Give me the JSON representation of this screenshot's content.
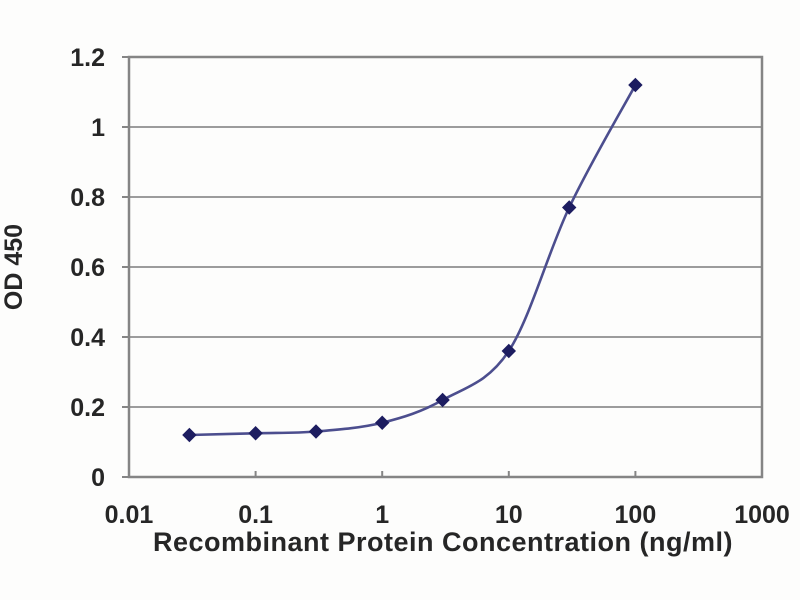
{
  "page": {
    "background": "#fdfdfc"
  },
  "chart_data": {
    "type": "line",
    "title": "",
    "xlabel": "Recombinant Protein Concentration (ng/ml)",
    "ylabel": "OD 450",
    "x_scale": "log",
    "xlim": [
      0.01,
      1000
    ],
    "ylim": [
      0,
      1.2
    ],
    "x_ticks": [
      0.01,
      0.1,
      1,
      10,
      100,
      1000
    ],
    "x_tick_labels": [
      "0.01",
      "0.1",
      "1",
      "10",
      "100",
      "1000"
    ],
    "y_ticks": [
      0,
      0.2,
      0.4,
      0.6,
      0.8,
      1,
      1.2
    ],
    "y_tick_labels": [
      "0",
      "0.2",
      "0.4",
      "0.6",
      "0.8",
      "1",
      "1.2"
    ],
    "grid": true,
    "legend": "none",
    "series": [
      {
        "name": "OD450",
        "marker": "diamond",
        "x": [
          0.03,
          0.1,
          0.3,
          1,
          3,
          10,
          30,
          100
        ],
        "y": [
          0.12,
          0.125,
          0.13,
          0.155,
          0.22,
          0.36,
          0.77,
          1.12
        ]
      }
    ],
    "colors": {
      "line": "#4c4e8e",
      "marker": "#1d1d60",
      "grid": "#9c9c9c",
      "frame": "#858585",
      "text": "#262626",
      "background": "#fdfdfc"
    }
  }
}
